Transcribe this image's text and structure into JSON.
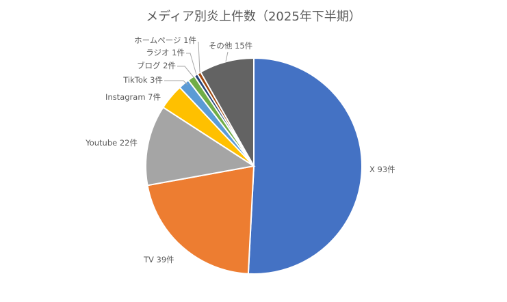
{
  "chart_data": {
    "type": "pie",
    "title": "メディア別炎上件数（2025年下半期）",
    "start": "12 o'clock, clockwise",
    "slices": [
      {
        "label": "X",
        "value": 93,
        "data_label": "X 93件",
        "color": "#4472C4"
      },
      {
        "label": "TV",
        "value": 39,
        "data_label": "TV 39件",
        "color": "#ED7D31"
      },
      {
        "label": "Youtube",
        "value": 22,
        "data_label": "Youtube 22件",
        "color": "#A5A5A5"
      },
      {
        "label": "Instagram",
        "value": 7,
        "data_label": "Instagram 7件",
        "color": "#FFC000"
      },
      {
        "label": "TikTok",
        "value": 3,
        "data_label": "TikTok 3件",
        "color": "#5B9BD5"
      },
      {
        "label": "ブログ",
        "value": 2,
        "data_label": "ブログ 2件",
        "color": "#70AD47"
      },
      {
        "label": "ラジオ",
        "value": 1,
        "data_label": "ラジオ 1件",
        "color": "#264478"
      },
      {
        "label": "ホームページ",
        "value": 1,
        "data_label": "ホームページ 1件",
        "color": "#9E480E"
      },
      {
        "label": "その他",
        "value": 15,
        "data_label": "その他 15件",
        "color": "#636363"
      }
    ]
  }
}
